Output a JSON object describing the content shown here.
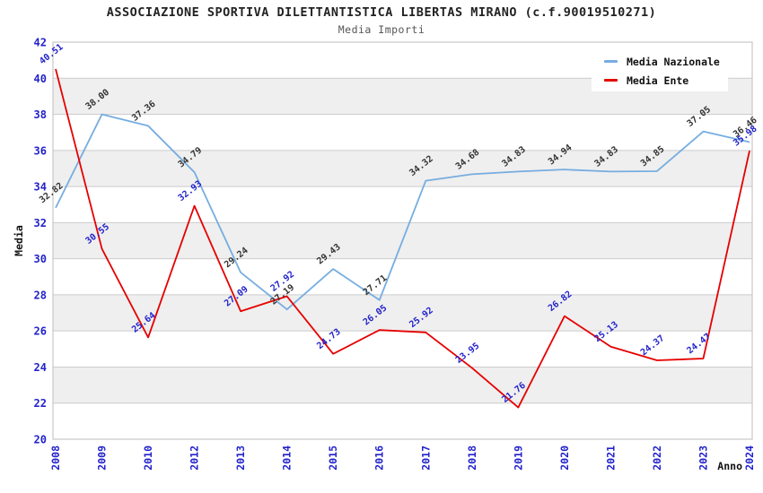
{
  "header": {
    "title": "ASSOCIAZIONE SPORTIVA DILETTANTISTICA LIBERTAS MIRANO (c.f.90019510271)",
    "subtitle": "Media Importi"
  },
  "chart_data": {
    "type": "line",
    "title": "ASSOCIAZIONE SPORTIVA DILETTANTISTICA LIBERTAS MIRANO (c.f.90019510271)",
    "subtitle": "Media Importi",
    "xlabel": "Anno",
    "ylabel": "Media",
    "categories": [
      "2008",
      "2009",
      "2010",
      "2012",
      "2013",
      "2014",
      "2015",
      "2016",
      "2017",
      "2018",
      "2019",
      "2020",
      "2021",
      "2022",
      "2023",
      "2024"
    ],
    "series": [
      {
        "name": "Media Nazionale",
        "color": "#76ade0",
        "label_color": "#333333",
        "values": [
          32.82,
          38.0,
          37.36,
          34.79,
          29.24,
          27.19,
          29.43,
          27.71,
          34.32,
          34.68,
          34.83,
          34.94,
          34.83,
          34.85,
          37.05,
          36.46
        ]
      },
      {
        "name": "Media Ente",
        "color": "#e60000",
        "label_color": "#2222cc",
        "values": [
          40.51,
          30.55,
          25.64,
          32.93,
          27.09,
          27.92,
          24.73,
          26.05,
          25.92,
          23.95,
          21.76,
          26.82,
          25.13,
          24.37,
          24.47,
          35.98
        ]
      }
    ],
    "ylim": [
      20,
      42
    ],
    "ytick_step": 2,
    "yticks": [
      20,
      22,
      24,
      26,
      28,
      30,
      32,
      34,
      36,
      38,
      40,
      42
    ],
    "grid": true,
    "shaded_bands": [
      [
        38,
        40
      ],
      [
        34,
        36
      ],
      [
        30,
        32
      ],
      [
        26,
        28
      ],
      [
        22,
        24
      ]
    ],
    "legend_position": "top-right",
    "legend_entries": [
      "Media Nazionale",
      "Media Ente"
    ]
  },
  "colors": {
    "tick_label": "#2222cc",
    "axis_title": "#111111",
    "gridline": "#cccccc",
    "band_fill": "#efefef",
    "plot_border": "#c8c8c8",
    "background": "#ffffff"
  }
}
